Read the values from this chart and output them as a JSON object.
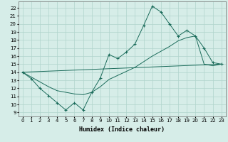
{
  "xlabel": "Humidex (Indice chaleur)",
  "xlim": [
    -0.5,
    23.5
  ],
  "ylim": [
    8.5,
    22.8
  ],
  "yticks": [
    9,
    10,
    11,
    12,
    13,
    14,
    15,
    16,
    17,
    18,
    19,
    20,
    21,
    22
  ],
  "xticks": [
    0,
    1,
    2,
    3,
    4,
    5,
    6,
    7,
    8,
    9,
    10,
    11,
    12,
    13,
    14,
    15,
    16,
    17,
    18,
    19,
    20,
    21,
    22,
    23
  ],
  "bg_color": "#d6ede8",
  "grid_color": "#b0d4cc",
  "line_color": "#1a6b5a",
  "line1_x": [
    0,
    1,
    2,
    3,
    4,
    5,
    6,
    7,
    8,
    9,
    10,
    11,
    12,
    13,
    14,
    15,
    16,
    17,
    18,
    19,
    20,
    21,
    22,
    23
  ],
  "line1_y": [
    14.0,
    13.2,
    12.0,
    11.1,
    10.2,
    9.3,
    10.2,
    9.3,
    11.5,
    13.3,
    16.2,
    15.7,
    16.5,
    17.5,
    19.8,
    22.2,
    21.5,
    20.0,
    18.5,
    19.2,
    18.5,
    17.0,
    15.2,
    15.0
  ],
  "line2_x": [
    0,
    23
  ],
  "line2_y": [
    14.0,
    15.0
  ],
  "line3_x": [
    0,
    1,
    2,
    3,
    4,
    5,
    6,
    7,
    8,
    9,
    10,
    11,
    12,
    13,
    14,
    15,
    16,
    17,
    18,
    19,
    20,
    21,
    22,
    23
  ],
  "line3_y": [
    14.0,
    13.4,
    12.8,
    12.2,
    11.7,
    11.5,
    11.3,
    11.2,
    11.5,
    12.2,
    13.1,
    13.6,
    14.1,
    14.6,
    15.3,
    16.0,
    16.6,
    17.2,
    17.9,
    18.3,
    18.5,
    15.0,
    14.8,
    15.0
  ]
}
